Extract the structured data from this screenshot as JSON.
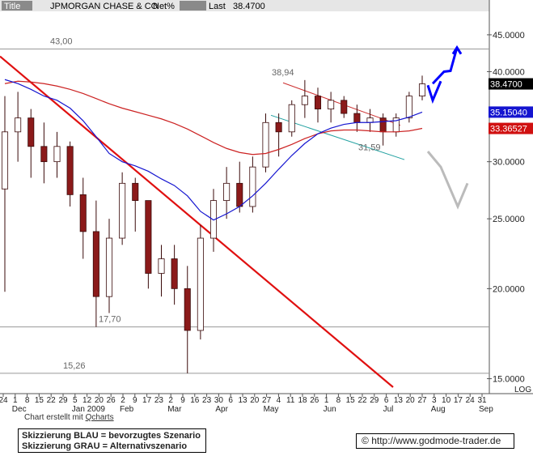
{
  "header": {
    "title_label": "Title",
    "title_value": "JPMORGAN CHASE & CO",
    "netpct_label": "Net%",
    "last_label": "Last",
    "last_value": "38.4700"
  },
  "colors": {
    "price_up": "#ffffff",
    "price_down": "#8b1a1a",
    "short_ma": "#1515d0",
    "long_ma": "#cc2222",
    "trend_red": "#e01010",
    "triangle_red": "#cc3030",
    "triangle_teal": "#20a0a0",
    "scenario_blue": "#0000ff",
    "scenario_gray": "#bbbbbb",
    "last_badge": "#000000",
    "ma_short_badge": "#1515d0",
    "ma_long_badge": "#d01010"
  },
  "chart_data": {
    "type": "candlestick",
    "scale": "log",
    "ylim": [
      14.6,
      48
    ],
    "right_axis_ticks": [
      "45.0000",
      "40.0000",
      "30.0000",
      "25.0000",
      "20.0000",
      "15.0000"
    ],
    "right_axis_values": [
      45,
      40,
      30,
      25,
      20,
      15
    ],
    "log_label": "LOG",
    "badges": [
      {
        "label": "38.4700",
        "value": 38.47,
        "style": "last"
      },
      {
        "label": "35.15040",
        "value": 35.1504,
        "style": "ma_short"
      },
      {
        "label": "33.36527",
        "value": 33.36527,
        "style": "ma_long"
      }
    ],
    "horizontal_levels": [
      {
        "label": "43,00",
        "value": 43.0
      },
      {
        "label": "17,70",
        "value": 17.7
      },
      {
        "label": "15,26",
        "value": 15.26
      }
    ],
    "point_labels": [
      {
        "label": "38,94",
        "value": 38.94
      },
      {
        "label": "31,59",
        "value": 31.59
      }
    ],
    "x_day_ticks": [
      "24",
      "1",
      "8",
      "15",
      "22",
      "29",
      "5",
      "12",
      "20",
      "26",
      "2",
      "9",
      "17",
      "23",
      "2",
      "9",
      "16",
      "23",
      "30",
      "6",
      "13",
      "20",
      "27",
      "4",
      "11",
      "18",
      "26",
      "1",
      "8",
      "15",
      "22",
      "29",
      "6",
      "13",
      "20",
      "27",
      "3",
      "10",
      "17",
      "24",
      "31"
    ],
    "x_month_ticks": [
      "Dec",
      "Jan 2009",
      "Feb",
      "Mar",
      "Apr",
      "May",
      "Jun",
      "Jul",
      "Aug",
      "Sep"
    ],
    "ohlc_weekly_approx": [
      {
        "o": 27.5,
        "h": 37.0,
        "l": 19.8,
        "c": 33.0
      },
      {
        "o": 33.0,
        "h": 37.5,
        "l": 30.0,
        "c": 34.5
      },
      {
        "o": 34.5,
        "h": 35.5,
        "l": 28.5,
        "c": 31.5
      },
      {
        "o": 31.5,
        "h": 34.0,
        "l": 28.0,
        "c": 30.0
      },
      {
        "o": 30.0,
        "h": 33.0,
        "l": 28.5,
        "c": 31.5
      },
      {
        "o": 31.5,
        "h": 32.0,
        "l": 26.0,
        "c": 27.0
      },
      {
        "o": 27.0,
        "h": 28.5,
        "l": 22.0,
        "c": 24.0
      },
      {
        "o": 24.0,
        "h": 26.5,
        "l": 17.7,
        "c": 19.5
      },
      {
        "o": 19.5,
        "h": 25.0,
        "l": 18.5,
        "c": 23.5
      },
      {
        "o": 23.5,
        "h": 29.0,
        "l": 23.0,
        "c": 28.0
      },
      {
        "o": 28.0,
        "h": 28.5,
        "l": 24.0,
        "c": 26.5
      },
      {
        "o": 26.5,
        "h": 26.5,
        "l": 20.0,
        "c": 21.0
      },
      {
        "o": 21.0,
        "h": 23.0,
        "l": 19.5,
        "c": 22.0
      },
      {
        "o": 22.0,
        "h": 23.0,
        "l": 19.0,
        "c": 20.0
      },
      {
        "o": 20.0,
        "h": 21.5,
        "l": 15.26,
        "c": 17.5
      },
      {
        "o": 17.5,
        "h": 24.5,
        "l": 17.0,
        "c": 23.5
      },
      {
        "o": 23.5,
        "h": 27.5,
        "l": 22.5,
        "c": 26.5
      },
      {
        "o": 26.5,
        "h": 29.5,
        "l": 25.0,
        "c": 28.0
      },
      {
        "o": 28.0,
        "h": 30.0,
        "l": 25.5,
        "c": 26.0
      },
      {
        "o": 26.0,
        "h": 30.5,
        "l": 25.5,
        "c": 29.5
      },
      {
        "o": 29.5,
        "h": 35.0,
        "l": 29.0,
        "c": 34.0
      },
      {
        "o": 34.0,
        "h": 35.0,
        "l": 30.5,
        "c": 33.0
      },
      {
        "o": 33.0,
        "h": 36.5,
        "l": 32.5,
        "c": 36.0
      },
      {
        "o": 36.0,
        "h": 38.94,
        "l": 34.5,
        "c": 37.0
      },
      {
        "o": 37.0,
        "h": 38.0,
        "l": 34.0,
        "c": 35.5
      },
      {
        "o": 35.5,
        "h": 37.5,
        "l": 34.0,
        "c": 36.5
      },
      {
        "o": 36.5,
        "h": 37.0,
        "l": 34.5,
        "c": 35.0
      },
      {
        "o": 35.0,
        "h": 36.0,
        "l": 33.0,
        "c": 34.0
      },
      {
        "o": 34.0,
        "h": 35.5,
        "l": 33.0,
        "c": 34.5
      },
      {
        "o": 34.5,
        "h": 35.0,
        "l": 31.59,
        "c": 33.0
      },
      {
        "o": 33.0,
        "h": 35.0,
        "l": 32.5,
        "c": 34.5
      },
      {
        "o": 34.5,
        "h": 37.5,
        "l": 34.0,
        "c": 37.0
      },
      {
        "o": 37.0,
        "h": 39.5,
        "l": 36.5,
        "c": 38.47
      }
    ],
    "ma_short_approx": [
      39.0,
      38.5,
      37.8,
      37.0,
      36.5,
      35.6,
      34.2,
      32.5,
      30.8,
      30.0,
      29.6,
      29.1,
      28.4,
      27.8,
      26.9,
      25.6,
      24.9,
      25.4,
      26.0,
      26.9,
      28.0,
      29.3,
      30.6,
      31.8,
      32.8,
      33.4,
      33.8,
      34.0,
      34.0,
      34.1,
      34.2,
      34.6,
      35.15
    ],
    "ma_long_approx": [
      38.5,
      38.8,
      38.7,
      38.5,
      38.2,
      37.8,
      37.3,
      36.7,
      36.1,
      35.6,
      35.2,
      34.8,
      34.4,
      33.9,
      33.3,
      32.6,
      31.9,
      31.3,
      30.9,
      30.7,
      30.8,
      31.2,
      31.7,
      32.3,
      32.8,
      33.1,
      33.2,
      33.2,
      33.1,
      33.0,
      33.0,
      33.1,
      33.37
    ],
    "scenario_blue_path": [
      [
        38.5,
        0
      ],
      [
        40.0,
        1
      ],
      [
        40.1,
        2
      ],
      [
        43.2,
        3
      ]
    ],
    "scenario_blue_alt": [
      [
        38.3,
        0
      ],
      [
        36.5,
        1
      ],
      [
        38.8,
        2
      ]
    ],
    "scenario_gray_path": [
      [
        31.0,
        0
      ],
      [
        29.5,
        1
      ],
      [
        26.0,
        2
      ],
      [
        28.0,
        3
      ]
    ]
  },
  "footer": {
    "credit_prefix": "Chart erstellt mit ",
    "credit_brand": "Qcharts",
    "legend_line1": "Skizzierung BLAU = bevorzugtes Szenario",
    "legend_line2": "Skizzierung GRAU = Alternativszenario",
    "copyright_symbol": "©",
    "url": "http://www.godmode-trader.de"
  }
}
